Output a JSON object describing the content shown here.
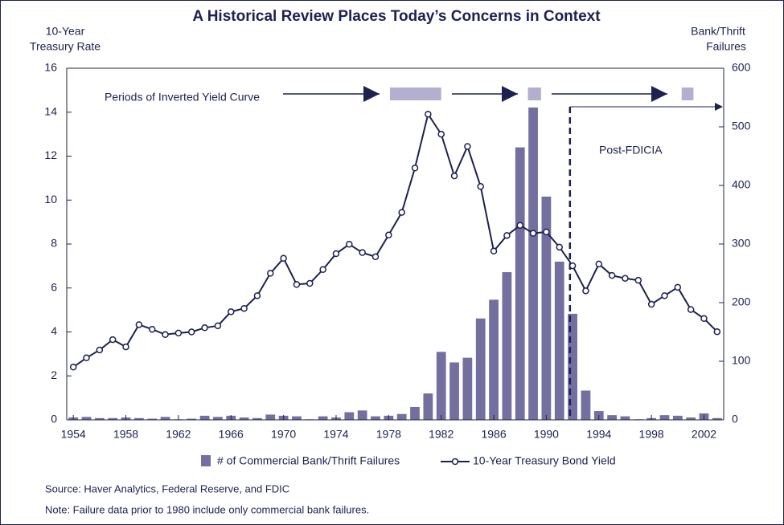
{
  "chart_data": {
    "type": "bar_line",
    "title": "A Historical Review Places Today’s Concerns in Context",
    "y_label": [
      "10-Year",
      "Treasury Rate"
    ],
    "y2_label": [
      "Bank/Thrift",
      "Failures"
    ],
    "x": [
      1954,
      1955,
      1956,
      1957,
      1958,
      1959,
      1960,
      1961,
      1962,
      1963,
      1964,
      1965,
      1966,
      1967,
      1968,
      1969,
      1970,
      1971,
      1972,
      1973,
      1974,
      1975,
      1976,
      1977,
      1978,
      1979,
      1980,
      1981,
      1982,
      1983,
      1984,
      1985,
      1986,
      1987,
      1988,
      1989,
      1990,
      1991,
      1992,
      1993,
      1994,
      1995,
      1996,
      1997,
      1998,
      1999,
      2000,
      2001,
      2002,
      2003
    ],
    "xlim": [
      1953.5,
      2003.5
    ],
    "xticks": [
      1954,
      1958,
      1962,
      1966,
      1970,
      1974,
      1978,
      1982,
      1986,
      1990,
      1994,
      1998,
      2002
    ],
    "ylim": [
      0,
      16
    ],
    "yticks": [
      0,
      2,
      4,
      6,
      8,
      10,
      12,
      14,
      16
    ],
    "y2lim": [
      0,
      600
    ],
    "y2ticks": [
      0,
      100,
      200,
      300,
      400,
      500,
      600
    ],
    "series": [
      {
        "name": "# of Commercial Bank/Thrift Failures",
        "color": "#736f9e",
        "axis": "y2",
        "kind": "bar",
        "values": [
          4,
          5,
          3,
          3,
          4,
          3,
          2,
          5,
          1,
          2,
          7,
          5,
          7,
          4,
          3,
          9,
          7,
          6,
          1,
          6,
          4,
          13,
          16,
          6,
          7,
          10,
          22,
          45,
          116,
          98,
          106,
          173,
          205,
          252,
          465,
          533,
          381,
          270,
          181,
          50,
          15,
          8,
          6,
          1,
          3,
          8,
          7,
          4,
          11,
          3
        ]
      },
      {
        "name": "10-Year Treasury Bond Yield",
        "color": "#1c2150",
        "kind": "line",
        "values": [
          2.4,
          2.82,
          3.18,
          3.65,
          3.32,
          4.33,
          4.12,
          3.88,
          3.95,
          4.0,
          4.19,
          4.28,
          4.92,
          5.07,
          5.65,
          6.67,
          7.35,
          6.16,
          6.21,
          6.84,
          7.56,
          7.99,
          7.61,
          7.42,
          8.41,
          9.44,
          11.46,
          13.91,
          13.0,
          11.1,
          12.44,
          10.62,
          7.68,
          8.39,
          8.85,
          8.49,
          8.55,
          7.86,
          7.01,
          5.87,
          7.09,
          6.57,
          6.44,
          6.35,
          5.26,
          5.65,
          6.03,
          5.02,
          4.61,
          4.01
        ]
      }
    ],
    "inverted_label": "Periods of Inverted Yield Curve",
    "inverted_periods": [
      [
        1978.1,
        1982.0
      ],
      [
        1988.6,
        1989.6
      ],
      [
        2000.3,
        2001.2
      ]
    ],
    "fdicia_label": "Post-FDICIA",
    "fdicia_x": 1991.8,
    "source": "Source: Haver Analytics, Federal Reserve, and FDIC",
    "note": "Note: Failure data prior to 1980 include only commercial bank failures."
  }
}
